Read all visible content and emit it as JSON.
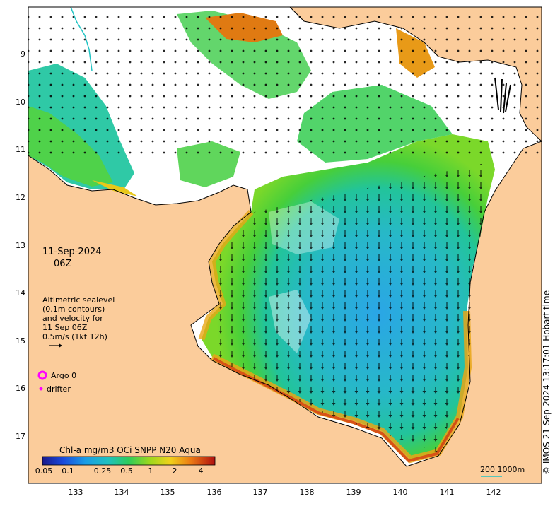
{
  "map": {
    "date_label": "11-Sep-2024",
    "time_label": "06Z",
    "legend_text": [
      "Altimetric sealevel",
      "(0.1m contours)",
      "and velocity for",
      "11 Sep 06Z",
      "0.5m/s (1kt 12h)"
    ],
    "argo_label": "Argo 0",
    "drifter_label": "drifter",
    "colorbar": {
      "title": "Chl-a mg/m3 OCi SNPP N20 Aqua",
      "ticks": [
        "0.05",
        "0.1",
        "0.25",
        "0.5",
        "1",
        "2",
        "4"
      ]
    },
    "scale_label": "200  1000m",
    "credit": "© IMOS 21-Sep-2024 13:17:01 Hobart time",
    "lat_ticks": [
      "9",
      "10",
      "11",
      "12",
      "13",
      "14",
      "15",
      "16",
      "17"
    ],
    "lon_ticks": [
      "133",
      "134",
      "135",
      "136",
      "137",
      "138",
      "139",
      "140",
      "141",
      "142"
    ],
    "colors": {
      "land": "#fbcc9b",
      "ocean_blue": "#29a9e0",
      "teal": "#1fc1a8",
      "green": "#3fcf3a",
      "yellow": "#e8d020",
      "orange": "#e87a10",
      "red": "#c01818",
      "argo": "#ff00ff"
    }
  }
}
